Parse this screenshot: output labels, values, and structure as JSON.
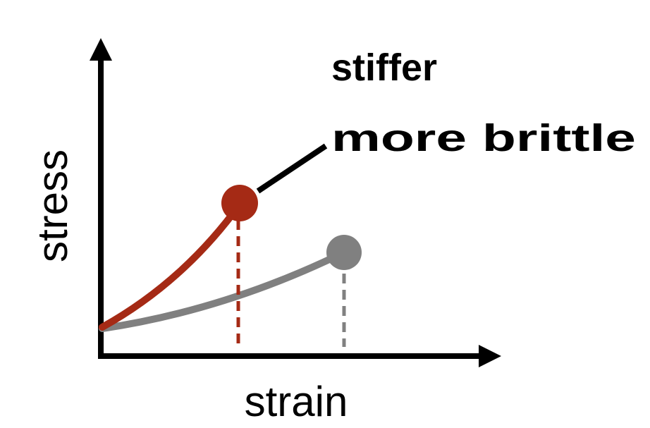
{
  "axes": {
    "y_label": "stress",
    "x_label": "strain"
  },
  "annotation": {
    "lines": [
      "stiffer",
      "more brittle"
    ]
  }
}
